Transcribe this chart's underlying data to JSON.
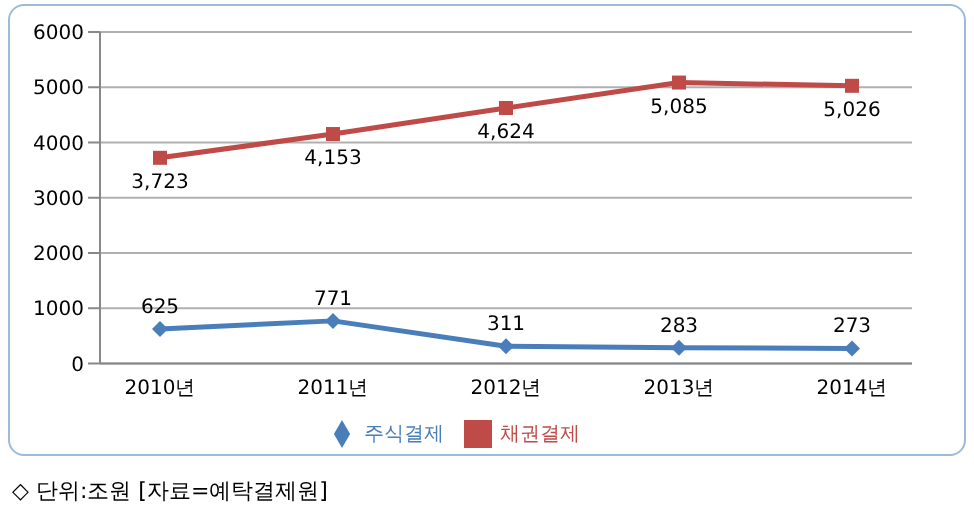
{
  "chart_data": {
    "type": "line",
    "categories": [
      "2010년",
      "2011년",
      "2012년",
      "2013년",
      "2014년"
    ],
    "series": [
      {
        "name": "주식결제",
        "color": "#4a7ebb",
        "marker": "diamond",
        "values": [
          625,
          771,
          311,
          283,
          273
        ],
        "value_labels": [
          "625",
          "771",
          "311",
          "283",
          "273"
        ]
      },
      {
        "name": "채권결제",
        "color": "#be4b48",
        "marker": "square",
        "values": [
          3723,
          4153,
          4624,
          5085,
          5026
        ],
        "value_labels": [
          "3,723",
          "4,153",
          "4,624",
          "5,085",
          "5,026"
        ]
      }
    ],
    "ylim": [
      0,
      6000
    ],
    "yticks": [
      0,
      1000,
      2000,
      3000,
      4000,
      5000,
      6000
    ],
    "grid": "y",
    "legend": "bottom",
    "annotations": [
      "◇ 단위:조원 [자료=예탁결제원]"
    ]
  }
}
